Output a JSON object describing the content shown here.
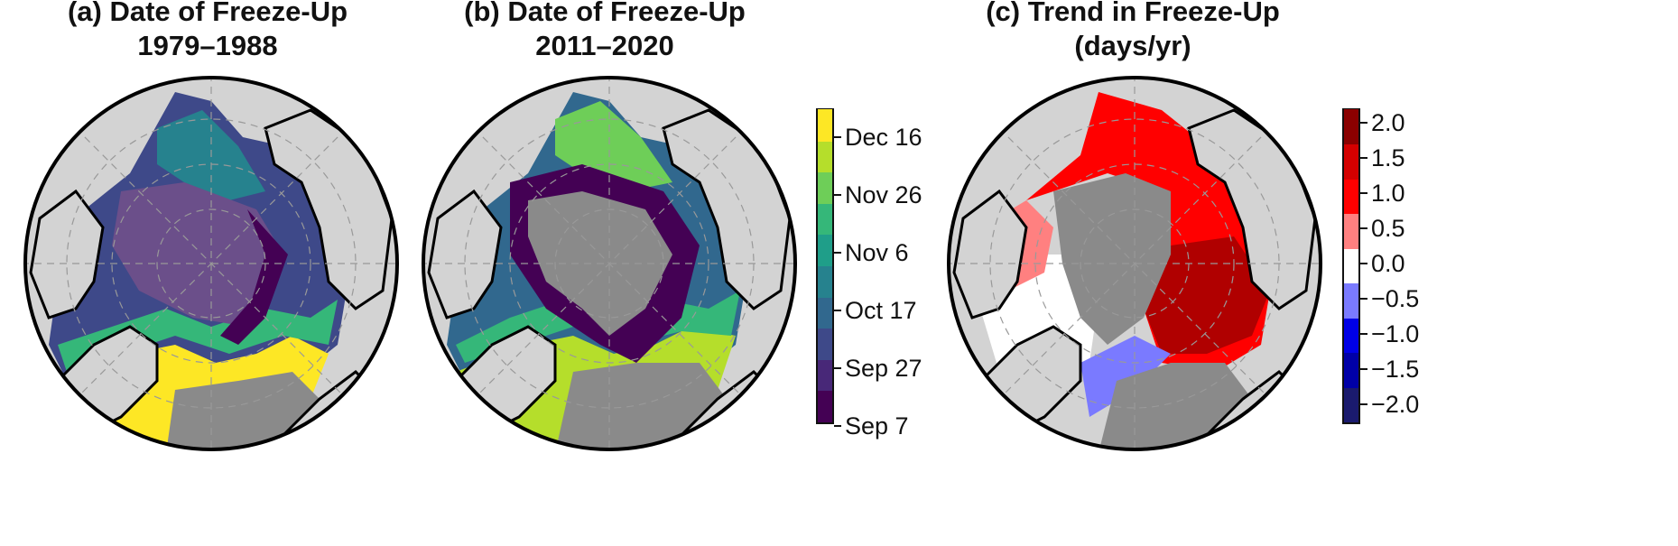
{
  "panels": [
    {
      "id": "a",
      "title_line1": "(a) Date of Freeze-Up",
      "title_line2": "1979–1988"
    },
    {
      "id": "b",
      "title_line1": "(b) Date of Freeze-Up",
      "title_line2": "2011–2020"
    },
    {
      "id": "c",
      "title_line1": "(c) Trend in Freeze-Up",
      "title_line2": "(days/yr)"
    }
  ],
  "colorbar_dates": {
    "labels": [
      "Dec 16",
      "Nov 26",
      "Nov 6",
      "Oct 17",
      "Sep 27",
      "Sep 7"
    ],
    "colors": [
      "#440154",
      "#482878",
      "#3e4989",
      "#31688e",
      "#26828e",
      "#1f9e89",
      "#35b779",
      "#6ece58",
      "#b5de2b",
      "#fde725"
    ]
  },
  "colorbar_trend": {
    "labels": [
      "2.0",
      "1.5",
      "1.0",
      "0.5",
      "0.0",
      "−0.5",
      "−1.0",
      "−1.5",
      "−2.0"
    ],
    "colors": [
      "#1a1a6e",
      "#0000a8",
      "#0000e6",
      "#7a7aff",
      "#ffffff",
      "#ff8080",
      "#ff0000",
      "#d40000",
      "#8b0000"
    ]
  },
  "colors": {
    "land": "#d3d3d3",
    "no_data": "#8a8a8a",
    "coast": "#000000"
  }
}
